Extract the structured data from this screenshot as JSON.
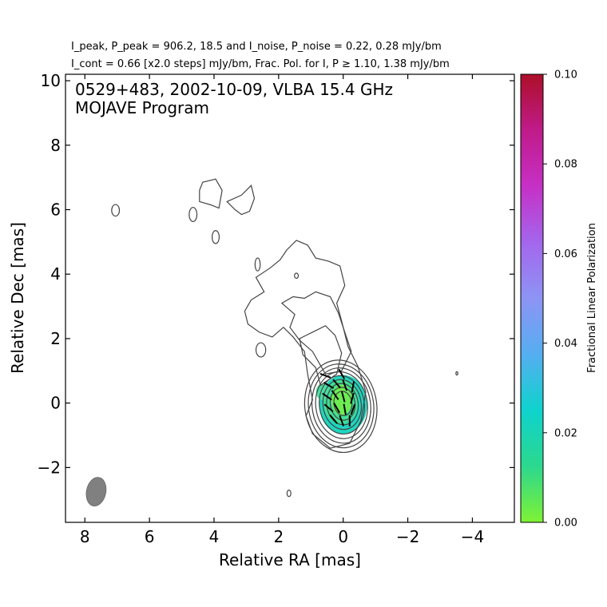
{
  "chart_data": {
    "type": "contour",
    "header_line1": "I_peak, P_peak = 906.2, 18.5 and I_noise, P_noise = 0.22, 0.28 mJy/bm",
    "header_line2": "I_cont = 0.66 [x2.0 steps] mJy/bm, Frac. Pol. for I, P ≥ 1.10, 1.38 mJy/bm",
    "header": {
      "i_peak": 906.2,
      "p_peak": 18.5,
      "i_noise": 0.22,
      "p_noise": 0.28,
      "i_cont": 0.66,
      "step_factor": 2.0,
      "i_min_fpol": 1.1,
      "p_min_fpol": 1.38,
      "unit": "mJy/bm"
    },
    "title_line1": "0529+483, 2002-10-09, VLBA 15.4 GHz",
    "title_line2": "MOJAVE Program",
    "xlabel": "Relative RA [mas]",
    "ylabel": "Relative Dec [mas]",
    "xlim": [
      8.6,
      -5.3
    ],
    "ylim": [
      -3.7,
      10.2
    ],
    "xticks": [
      8,
      6,
      4,
      2,
      0,
      -2,
      -4
    ],
    "yticks": [
      -2,
      0,
      2,
      4,
      6,
      8,
      10
    ],
    "core": {
      "x": 0.0,
      "y": 0.0
    },
    "contour_levels": 9,
    "colorbar": {
      "label": "Fractional Linear Polarization",
      "range": [
        0.0,
        0.1
      ],
      "ticks": [
        "0.00",
        "0.02",
        "0.04",
        "0.06",
        "0.08",
        "0.10"
      ],
      "colors": [
        "#7ff234",
        "#2cd88e",
        "#0ed3cd",
        "#55aef0",
        "#8d94f4",
        "#a466ec",
        "#c630c6",
        "#c01b8a",
        "#ad0f28"
      ]
    },
    "beam": {
      "x": 7.65,
      "y": -2.75,
      "major_mas": 0.9,
      "minor_mas": 0.6,
      "color": "#808080"
    },
    "contour_color": "#444444"
  }
}
